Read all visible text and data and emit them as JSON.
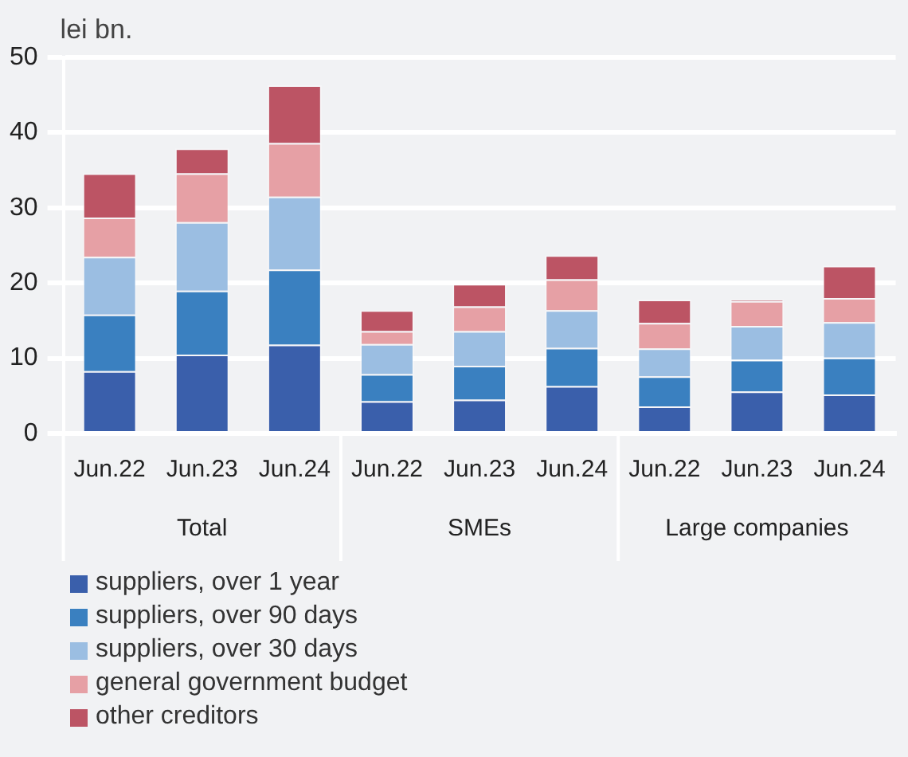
{
  "chart_data": {
    "type": "bar",
    "stacked": true,
    "ylabel": "lei bn.",
    "categories": [
      "Jun.22",
      "Jun.23",
      "Jun.24",
      "Jun.22",
      "Jun.23",
      "Jun.24",
      "Jun.22",
      "Jun.23",
      "Jun.24"
    ],
    "annotations": [
      "Total",
      "SMEs",
      "Large companies"
    ],
    "series": [
      {
        "name": "suppliers, over 1 year",
        "color": "#3a5fab",
        "values": [
          8.3,
          10.5,
          11.8,
          4.3,
          4.5,
          6.3,
          3.6,
          5.6,
          5.2
        ]
      },
      {
        "name": "suppliers, over 90 days",
        "color": "#3a80c0",
        "values": [
          7.5,
          8.5,
          10.0,
          3.6,
          4.5,
          5.1,
          4.0,
          4.2,
          4.9
        ]
      },
      {
        "name": "suppliers, over 30 days",
        "color": "#9bbee2",
        "values": [
          7.7,
          9.1,
          9.7,
          4.0,
          4.6,
          5.0,
          3.7,
          4.5,
          4.7
        ]
      },
      {
        "name": "general government budget",
        "color": "#e6a0a5",
        "values": [
          5.2,
          6.5,
          7.1,
          1.7,
          3.3,
          4.1,
          3.4,
          3.3,
          3.2
        ]
      },
      {
        "name": "other creditors",
        "color": "#bc5464",
        "values": [
          5.9,
          3.3,
          7.7,
          2.8,
          3.0,
          3.2,
          3.1,
          0.2,
          4.3
        ]
      }
    ],
    "ylim": [
      0,
      50
    ],
    "yticks": [
      0,
      10,
      20,
      30,
      40,
      50
    ],
    "grid": "y",
    "legend": "bottom"
  }
}
